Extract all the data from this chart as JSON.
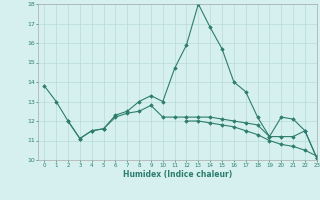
{
  "title": "",
  "xlabel": "Humidex (Indice chaleur)",
  "x": [
    0,
    1,
    2,
    3,
    4,
    5,
    6,
    7,
    8,
    9,
    10,
    11,
    12,
    13,
    14,
    15,
    16,
    17,
    18,
    19,
    20,
    21,
    22,
    23
  ],
  "line1": [
    13.8,
    13.0,
    12.0,
    11.1,
    11.5,
    11.6,
    12.3,
    12.5,
    13.0,
    13.3,
    13.0,
    14.7,
    15.9,
    18.0,
    16.8,
    15.7,
    14.0,
    13.5,
    12.2,
    11.2,
    12.2,
    12.1,
    11.5,
    10.1
  ],
  "line2": [
    null,
    null,
    12.0,
    11.1,
    11.5,
    11.6,
    12.2,
    12.4,
    12.5,
    12.8,
    12.2,
    12.2,
    12.2,
    12.2,
    12.2,
    12.1,
    12.0,
    11.9,
    11.8,
    11.2,
    11.2,
    11.2,
    11.5,
    10.1
  ],
  "line3": [
    null,
    null,
    null,
    null,
    null,
    null,
    null,
    null,
    null,
    null,
    null,
    null,
    12.0,
    12.0,
    11.9,
    11.8,
    11.7,
    11.5,
    11.3,
    11.0,
    10.8,
    10.7,
    10.5,
    10.2
  ],
  "color": "#2d7d6e",
  "bg_color": "#d6f0ef",
  "grid_color": "#b8dbd8",
  "ylim": [
    10,
    18
  ],
  "yticks": [
    10,
    11,
    12,
    13,
    14,
    15,
    16,
    17,
    18
  ],
  "xlim": [
    -0.5,
    23
  ],
  "xticks": [
    0,
    1,
    2,
    3,
    4,
    5,
    6,
    7,
    8,
    9,
    10,
    11,
    12,
    13,
    14,
    15,
    16,
    17,
    18,
    19,
    20,
    21,
    22,
    23
  ]
}
